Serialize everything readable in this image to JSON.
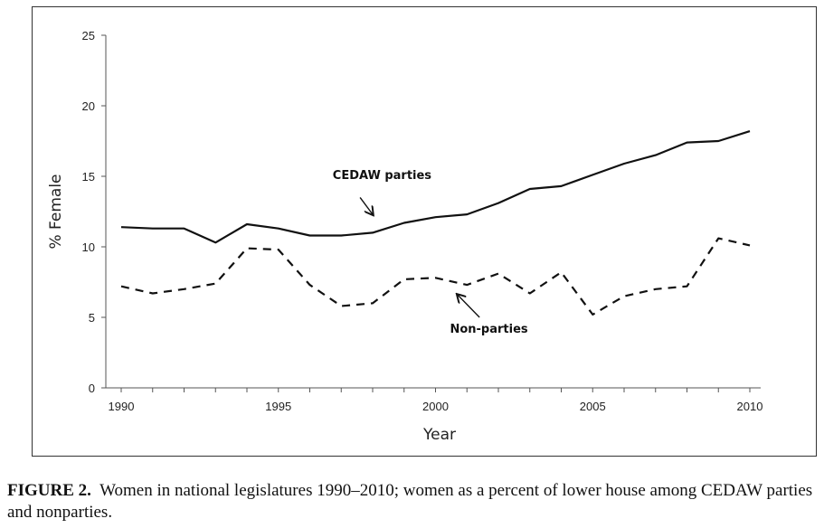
{
  "chart_data": {
    "type": "line",
    "xlabel": "Year",
    "ylabel": "% Female",
    "xlim": [
      1990,
      2010
    ],
    "ylim": [
      0,
      25
    ],
    "x_ticks": [
      "1990",
      "1995",
      "2000",
      "2005",
      "2010"
    ],
    "y_ticks": [
      "0",
      "5",
      "10",
      "15",
      "20",
      "25"
    ],
    "grid": false,
    "series": [
      {
        "name": "CEDAW parties",
        "style": "solid",
        "color": "#111111",
        "x": [
          1990,
          1991,
          1992,
          1993,
          1994,
          1995,
          1996,
          1997,
          1998,
          1999,
          2000,
          2001,
          2002,
          2003,
          2004,
          2005,
          2006,
          2007,
          2008,
          2009,
          2010
        ],
        "y": [
          11.4,
          11.3,
          11.3,
          10.3,
          11.6,
          11.3,
          10.8,
          10.8,
          11.0,
          11.7,
          12.1,
          12.3,
          13.1,
          14.1,
          14.3,
          15.1,
          15.9,
          16.5,
          17.4,
          17.5,
          18.2
        ]
      },
      {
        "name": "Non-parties",
        "style": "dashed",
        "color": "#111111",
        "x": [
          1990,
          1991,
          1992,
          1993,
          1994,
          1995,
          1996,
          1997,
          1998,
          1999,
          2000,
          2001,
          2002,
          2003,
          2004,
          2005,
          2006,
          2007,
          2008,
          2009,
          2010
        ],
        "y": [
          7.2,
          6.7,
          7.0,
          7.4,
          9.9,
          9.8,
          7.3,
          5.8,
          6.0,
          7.7,
          7.8,
          7.3,
          8.1,
          6.7,
          8.2,
          5.2,
          6.5,
          7.0,
          7.2,
          10.6,
          10.1
        ]
      }
    ],
    "annotations": [
      {
        "text": "CEDAW parties",
        "label_x": 1998.3,
        "label_y": 14.8,
        "arrow_from": [
          1997.6,
          13.5
        ],
        "arrow_to": [
          1998.0,
          12.3
        ]
      },
      {
        "text": "Non-parties",
        "label_x": 2001.7,
        "label_y": 3.9,
        "arrow_from": [
          2001.4,
          5.0
        ],
        "arrow_to": [
          2000.7,
          6.6
        ]
      }
    ]
  },
  "caption": {
    "label": "FIGURE 2.",
    "text": "Women in national legislatures 1990–2010; women as a percent of lower house among CEDAW parties and nonparties."
  }
}
